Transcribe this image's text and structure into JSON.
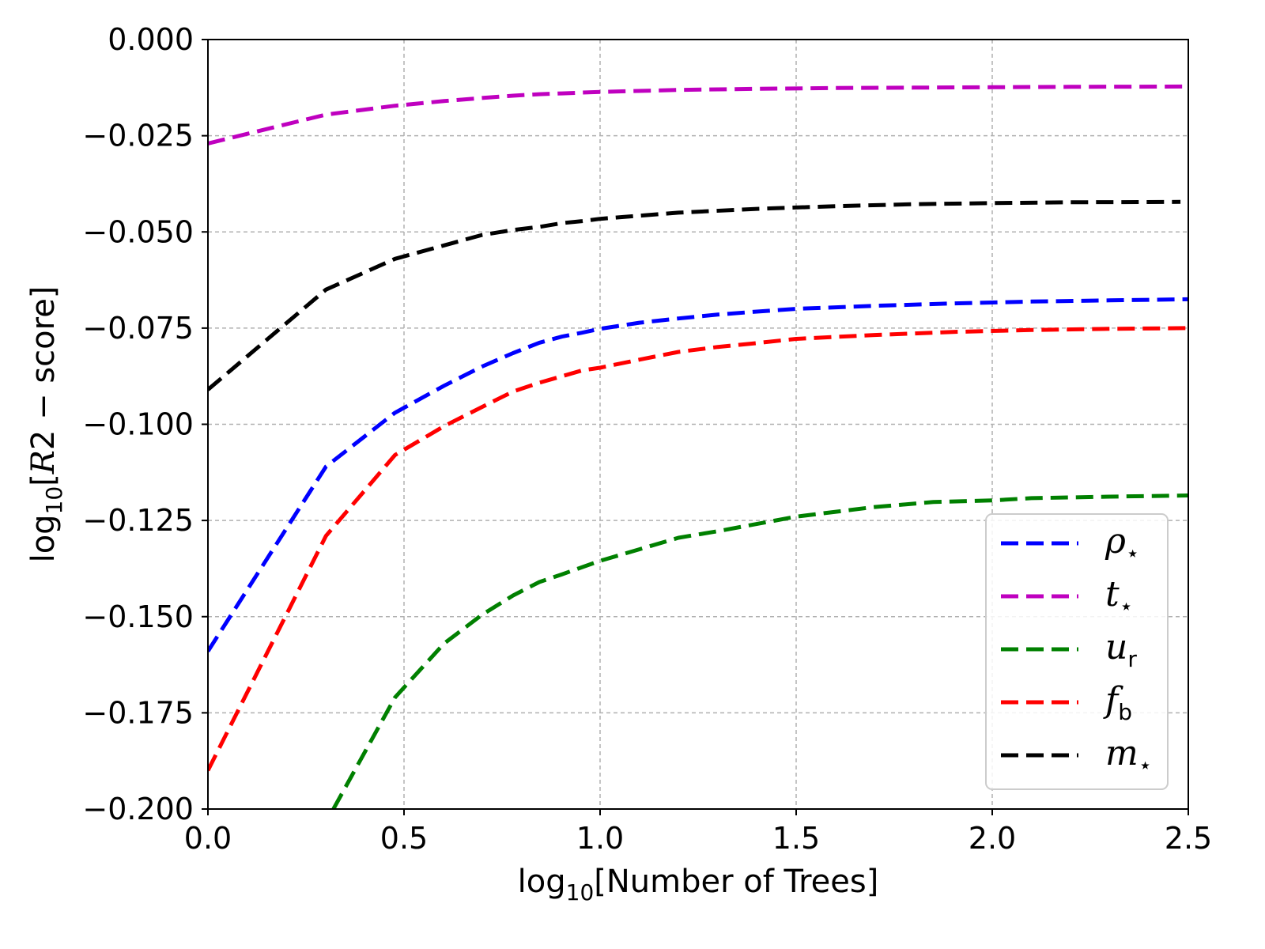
{
  "chart_data": {
    "type": "line",
    "xlabel_prefix": "log",
    "xlabel_sub": "10",
    "xlabel_text": "[Number of Trees]",
    "ylabel_prefix": "log",
    "ylabel_sub": "10",
    "ylabel_open": "[",
    "ylabel_var": "R",
    "ylabel_text": "2 − score]",
    "xlim": [
      0.0,
      2.5
    ],
    "ylim": [
      -0.2,
      0.0
    ],
    "xticks": [
      0.0,
      0.5,
      1.0,
      1.5,
      2.0,
      2.5
    ],
    "xtick_labels": [
      "0.0",
      "0.5",
      "1.0",
      "1.5",
      "2.0",
      "2.5"
    ],
    "yticks": [
      0.0,
      -0.025,
      -0.05,
      -0.075,
      -0.1,
      -0.125,
      -0.15,
      -0.175,
      -0.2
    ],
    "ytick_labels": [
      "0.000",
      "−0.025",
      "−0.050",
      "−0.075",
      "−0.100",
      "−0.125",
      "−0.150",
      "−0.175",
      "−0.200"
    ],
    "grid": true,
    "legend_position": "lower-right",
    "line_style": "dashed",
    "series": [
      {
        "name": "ρ",
        "subscript": "⋆",
        "color": "#0000ff",
        "x": [
          0.0,
          0.301,
          0.477,
          0.602,
          0.699,
          0.778,
          0.845,
          0.903,
          0.954,
          1.0,
          1.1,
          1.2,
          1.3,
          1.4,
          1.5,
          1.7,
          1.9,
          2.1,
          2.3,
          2.5
        ],
        "y": [
          -0.159,
          -0.111,
          -0.097,
          -0.09,
          -0.085,
          -0.0815,
          -0.0788,
          -0.0772,
          -0.0762,
          -0.0752,
          -0.0736,
          -0.0725,
          -0.0715,
          -0.0707,
          -0.07,
          -0.0692,
          -0.0686,
          -0.0681,
          -0.0678,
          -0.0675
        ]
      },
      {
        "name": "t",
        "subscript": "⋆",
        "color": "#bf00bf",
        "x": [
          0.0,
          0.301,
          0.477,
          0.602,
          0.699,
          0.778,
          0.845,
          0.903,
          0.954,
          1.0,
          1.2,
          1.4,
          1.6,
          1.8,
          2.0,
          2.2,
          2.5
        ],
        "y": [
          -0.027,
          -0.0195,
          -0.0172,
          -0.016,
          -0.0152,
          -0.0146,
          -0.0142,
          -0.014,
          -0.0138,
          -0.0136,
          -0.0131,
          -0.0128,
          -0.0126,
          -0.0125,
          -0.0124,
          -0.0123,
          -0.0122
        ]
      },
      {
        "name": "u",
        "subscript": "r",
        "color": "#008000",
        "x": [
          0.32,
          0.477,
          0.602,
          0.699,
          0.778,
          0.845,
          0.903,
          1.0,
          1.1,
          1.2,
          1.3,
          1.5,
          1.7,
          1.85,
          2.0,
          2.1,
          2.3,
          2.5
        ],
        "y": [
          -0.2,
          -0.171,
          -0.157,
          -0.1495,
          -0.1445,
          -0.141,
          -0.139,
          -0.1355,
          -0.1325,
          -0.1295,
          -0.1278,
          -0.124,
          -0.1215,
          -0.1202,
          -0.1198,
          -0.1192,
          -0.1188,
          -0.1185
        ]
      },
      {
        "name": "f",
        "subscript": "b",
        "color": "#ff0000",
        "x": [
          0.0,
          0.301,
          0.477,
          0.602,
          0.699,
          0.778,
          0.845,
          0.903,
          0.954,
          1.0,
          1.1,
          1.2,
          1.3,
          1.4,
          1.5,
          1.7,
          1.9,
          2.1,
          2.3,
          2.5
        ],
        "y": [
          -0.19,
          -0.129,
          -0.108,
          -0.1005,
          -0.0955,
          -0.0915,
          -0.0892,
          -0.0875,
          -0.086,
          -0.0853,
          -0.0832,
          -0.0812,
          -0.0799,
          -0.0789,
          -0.0778,
          -0.0768,
          -0.076,
          -0.0755,
          -0.0752,
          -0.075
        ]
      },
      {
        "name": "m",
        "subscript": "⋆",
        "color": "#000000",
        "x": [
          0.0,
          0.301,
          0.477,
          0.602,
          0.699,
          0.778,
          0.845,
          0.903,
          0.954,
          1.0,
          1.2,
          1.4,
          1.6,
          1.8,
          2.0,
          2.2,
          2.48
        ],
        "y": [
          -0.091,
          -0.065,
          -0.057,
          -0.0535,
          -0.0508,
          -0.0495,
          -0.0487,
          -0.0477,
          -0.0472,
          -0.0466,
          -0.045,
          -0.044,
          -0.0433,
          -0.0428,
          -0.0425,
          -0.0423,
          -0.0422
        ]
      }
    ]
  }
}
